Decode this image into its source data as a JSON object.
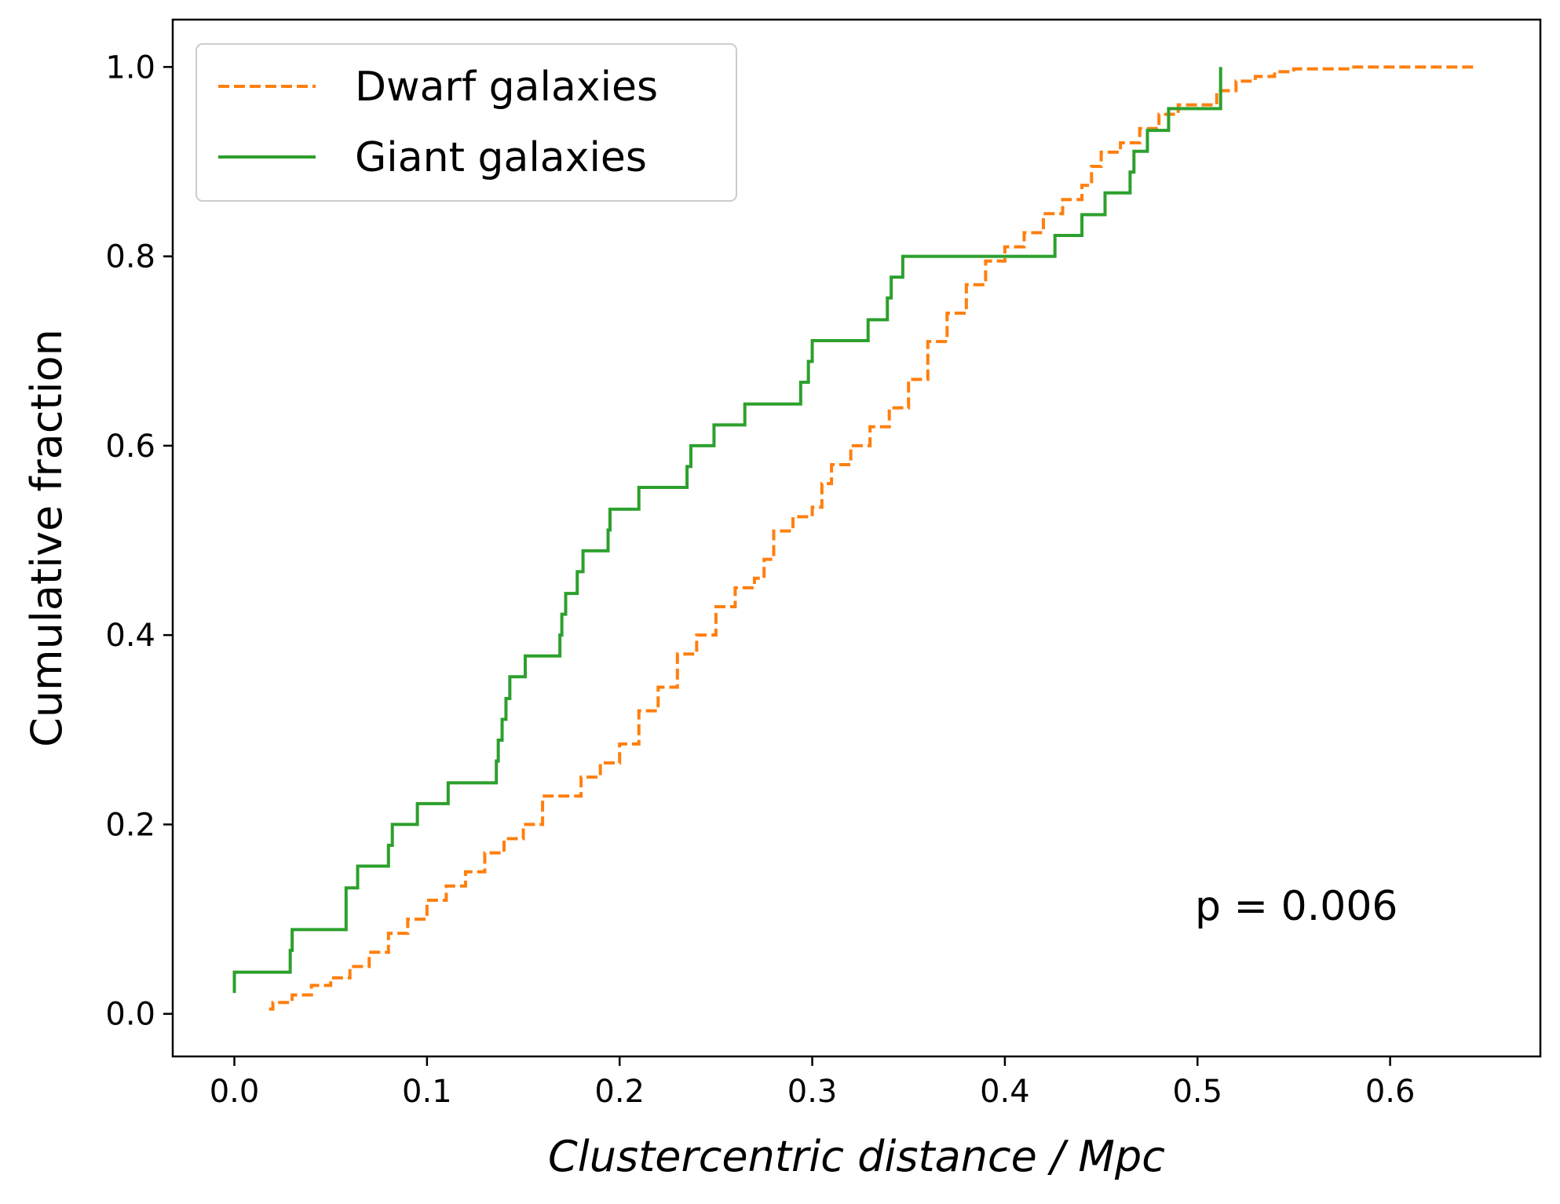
{
  "chart_data": {
    "type": "line",
    "title": "",
    "xlabel": "Clustercentric distance / Mpc",
    "ylabel": "Cumulative fraction",
    "xlim": [
      -0.032,
      0.678
    ],
    "ylim": [
      -0.045,
      1.05
    ],
    "xticks": [
      0.0,
      0.1,
      0.2,
      0.3,
      0.4,
      0.5,
      0.6
    ],
    "xtick_labels": [
      "0.0",
      "0.1",
      "0.2",
      "0.3",
      "0.4",
      "0.5",
      "0.6"
    ],
    "yticks": [
      0.0,
      0.2,
      0.4,
      0.6,
      0.8,
      1.0
    ],
    "ytick_labels": [
      "0.0",
      "0.2",
      "0.4",
      "0.6",
      "0.8",
      "1.0"
    ],
    "grid": false,
    "legend_position": "top-left",
    "annotation": "p = 0.006",
    "series": [
      {
        "name": "Dwarf galaxies",
        "color": "#ff7f0e",
        "style": "dashed",
        "step": true,
        "x": [
          0.018,
          0.02,
          0.03,
          0.04,
          0.05,
          0.06,
          0.07,
          0.08,
          0.09,
          0.1,
          0.11,
          0.12,
          0.13,
          0.14,
          0.15,
          0.16,
          0.17,
          0.18,
          0.19,
          0.2,
          0.21,
          0.22,
          0.23,
          0.24,
          0.25,
          0.26,
          0.27,
          0.275,
          0.28,
          0.29,
          0.3,
          0.305,
          0.31,
          0.32,
          0.33,
          0.34,
          0.35,
          0.36,
          0.37,
          0.38,
          0.39,
          0.4,
          0.41,
          0.42,
          0.43,
          0.44,
          0.445,
          0.45,
          0.46,
          0.47,
          0.48,
          0.49,
          0.5,
          0.51,
          0.52,
          0.53,
          0.54,
          0.55,
          0.58,
          0.6,
          0.645
        ],
        "y": [
          0.005,
          0.012,
          0.02,
          0.03,
          0.038,
          0.05,
          0.065,
          0.085,
          0.1,
          0.12,
          0.135,
          0.15,
          0.17,
          0.185,
          0.2,
          0.23,
          0.23,
          0.25,
          0.265,
          0.285,
          0.32,
          0.345,
          0.38,
          0.4,
          0.43,
          0.45,
          0.46,
          0.48,
          0.51,
          0.525,
          0.535,
          0.56,
          0.58,
          0.6,
          0.62,
          0.64,
          0.67,
          0.71,
          0.74,
          0.77,
          0.795,
          0.81,
          0.825,
          0.845,
          0.86,
          0.875,
          0.895,
          0.91,
          0.92,
          0.935,
          0.95,
          0.96,
          0.96,
          0.975,
          0.985,
          0.99,
          0.995,
          0.998,
          1.0,
          1.0,
          1.0
        ]
      },
      {
        "name": "Giant galaxies",
        "color": "#2ca02c",
        "style": "solid",
        "step": true,
        "x": [
          0.0,
          0.0,
          0.028,
          0.029,
          0.03,
          0.053,
          0.058,
          0.064,
          0.08,
          0.082,
          0.095,
          0.111,
          0.136,
          0.137,
          0.139,
          0.141,
          0.143,
          0.151,
          0.169,
          0.17,
          0.172,
          0.178,
          0.181,
          0.194,
          0.195,
          0.21,
          0.235,
          0.237,
          0.249,
          0.265,
          0.294,
          0.298,
          0.3,
          0.329,
          0.339,
          0.341,
          0.347,
          0.426,
          0.44,
          0.452,
          0.465,
          0.467,
          0.474,
          0.485,
          0.512
        ],
        "y": [
          0.022,
          0.044,
          0.044,
          0.067,
          0.089,
          0.089,
          0.133,
          0.156,
          0.178,
          0.2,
          0.222,
          0.244,
          0.267,
          0.289,
          0.311,
          0.333,
          0.356,
          0.378,
          0.4,
          0.422,
          0.444,
          0.467,
          0.489,
          0.511,
          0.533,
          0.556,
          0.578,
          0.6,
          0.622,
          0.644,
          0.667,
          0.689,
          0.711,
          0.733,
          0.756,
          0.778,
          0.8,
          0.822,
          0.844,
          0.867,
          0.889,
          0.911,
          0.933,
          0.956,
          1.0
        ]
      }
    ]
  }
}
